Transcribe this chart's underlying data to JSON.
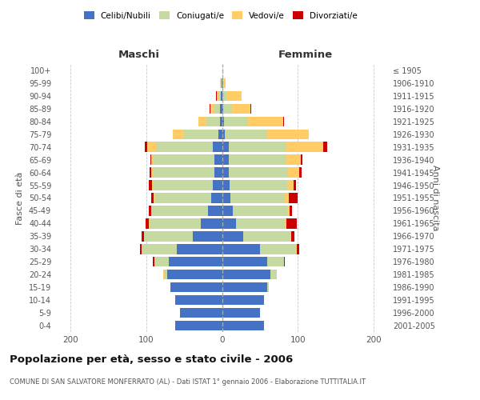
{
  "age_groups": [
    "0-4",
    "5-9",
    "10-14",
    "15-19",
    "20-24",
    "25-29",
    "30-34",
    "35-39",
    "40-44",
    "45-49",
    "50-54",
    "55-59",
    "60-64",
    "65-69",
    "70-74",
    "75-79",
    "80-84",
    "85-89",
    "90-94",
    "95-99",
    "100+"
  ],
  "birth_years": [
    "2001-2005",
    "1996-2000",
    "1991-1995",
    "1986-1990",
    "1981-1985",
    "1976-1980",
    "1971-1975",
    "1966-1970",
    "1961-1965",
    "1956-1960",
    "1951-1955",
    "1946-1950",
    "1941-1945",
    "1936-1940",
    "1931-1935",
    "1926-1930",
    "1921-1925",
    "1916-1920",
    "1911-1915",
    "1906-1910",
    "≤ 1905"
  ],
  "maschi": {
    "celibi": [
      62,
      55,
      62,
      68,
      72,
      70,
      60,
      38,
      28,
      18,
      14,
      12,
      10,
      10,
      12,
      5,
      3,
      3,
      2,
      1,
      0
    ],
    "coniugati": [
      0,
      0,
      0,
      0,
      5,
      18,
      45,
      65,
      68,
      74,
      74,
      78,
      80,
      80,
      75,
      45,
      18,
      7,
      3,
      1,
      0
    ],
    "vedovi": [
      0,
      0,
      0,
      0,
      1,
      1,
      1,
      0,
      1,
      1,
      2,
      2,
      3,
      3,
      12,
      15,
      10,
      5,
      2,
      1,
      0
    ],
    "divorziati": [
      0,
      0,
      0,
      0,
      0,
      2,
      2,
      3,
      4,
      4,
      3,
      5,
      2,
      1,
      3,
      0,
      0,
      1,
      1,
      0,
      0
    ]
  },
  "femmine": {
    "nubili": [
      55,
      50,
      55,
      60,
      64,
      60,
      50,
      28,
      18,
      14,
      11,
      10,
      9,
      9,
      9,
      4,
      3,
      2,
      1,
      0,
      0
    ],
    "coniugate": [
      0,
      0,
      0,
      2,
      8,
      22,
      48,
      62,
      65,
      72,
      72,
      76,
      78,
      75,
      75,
      55,
      30,
      10,
      5,
      2,
      0
    ],
    "vedove": [
      0,
      0,
      0,
      0,
      0,
      0,
      1,
      1,
      2,
      3,
      5,
      8,
      15,
      20,
      50,
      55,
      48,
      25,
      20,
      3,
      0
    ],
    "divorziate": [
      0,
      0,
      0,
      0,
      0,
      1,
      3,
      5,
      14,
      3,
      12,
      4,
      3,
      2,
      5,
      1,
      1,
      1,
      0,
      0,
      0
    ]
  },
  "colors": {
    "celibi_nubili": "#4472C4",
    "coniugati": "#C5D9A0",
    "vedovi": "#FFCC66",
    "divorziati": "#CC0000"
  },
  "xlim": 220,
  "title": "Popolazione per età, sesso e stato civile - 2006",
  "subtitle": "COMUNE DI SAN SALVATORE MONFERRATO (AL) - Dati ISTAT 1° gennaio 2006 - Elaborazione TUTTITALIA.IT",
  "ylabel_left": "Fasce di età",
  "ylabel_right": "Anni di nascita",
  "xlabel_left": "Maschi",
  "xlabel_right": "Femmine",
  "legend_labels": [
    "Celibi/Nubili",
    "Coniugati/e",
    "Vedovi/e",
    "Divorziati/e"
  ],
  "background_color": "#FFFFFF",
  "grid_color": "#BBBBBB"
}
